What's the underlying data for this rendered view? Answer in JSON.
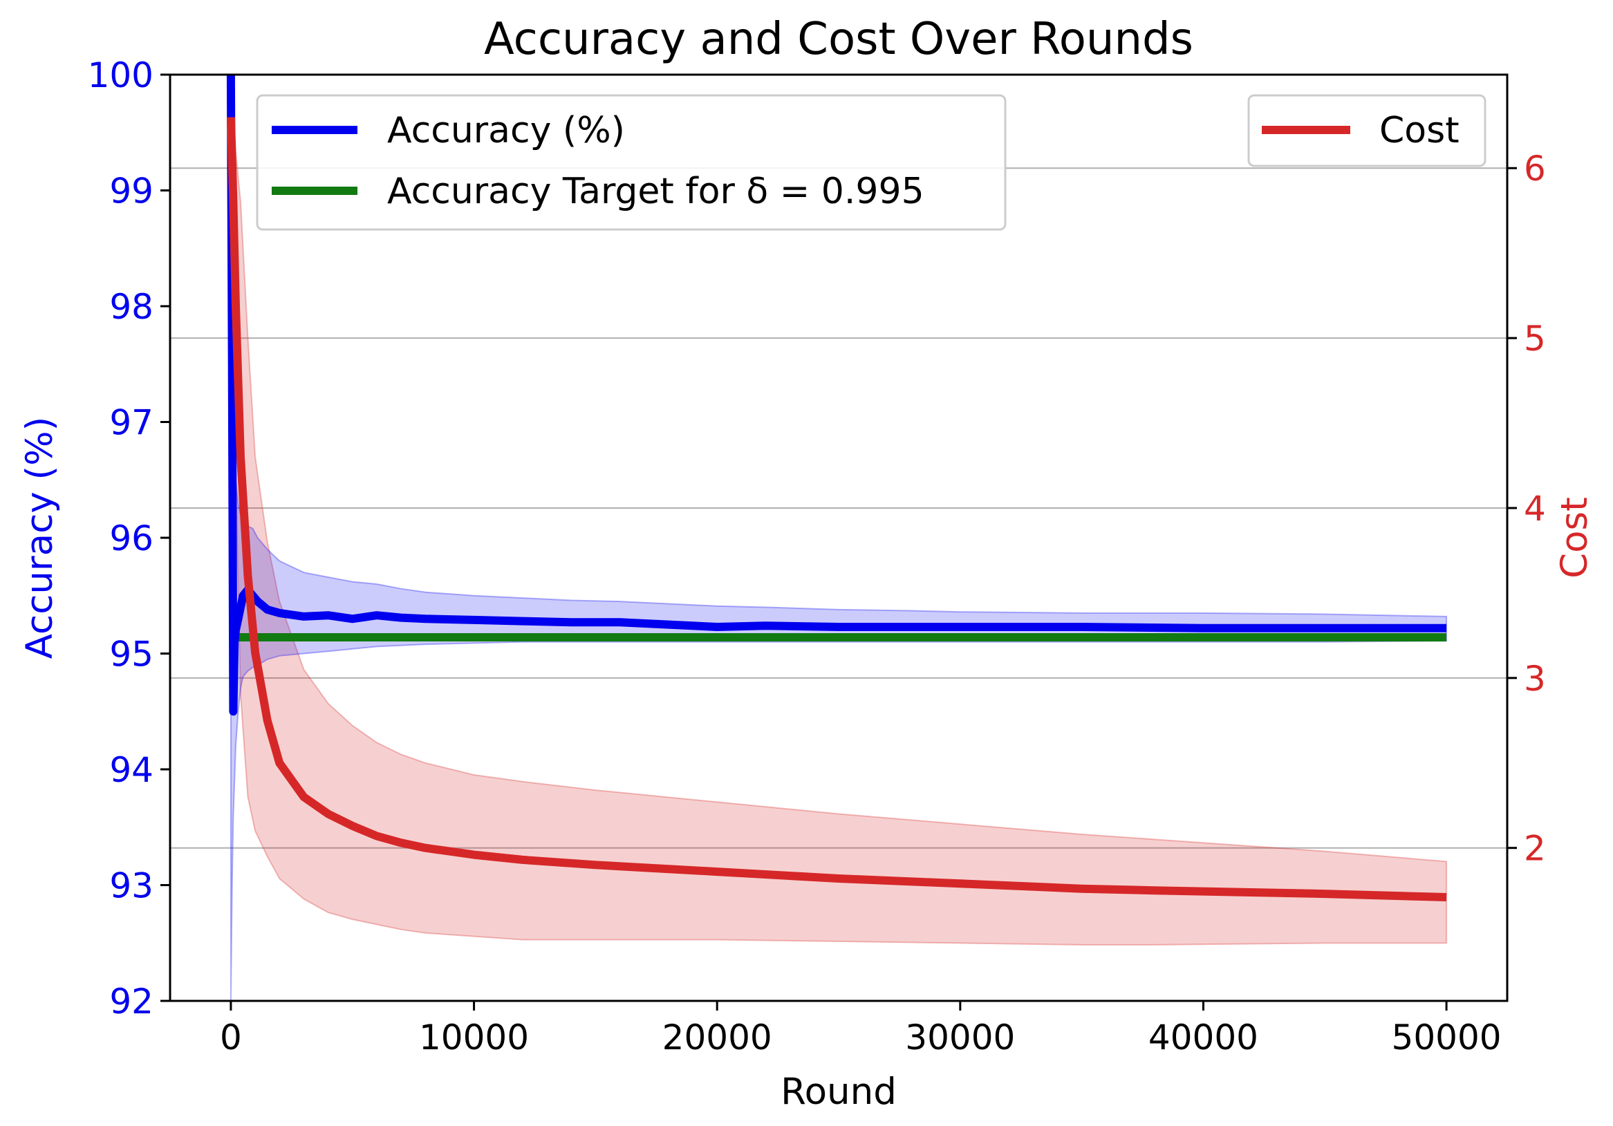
{
  "chart_data": {
    "type": "line",
    "title": "Accuracy and Cost Over Rounds",
    "xlabel": "Round",
    "ylabel_left": "Accuracy (%)",
    "ylabel_right": "Cost",
    "xlim": [
      -2500,
      52500
    ],
    "ylim_left": [
      92,
      100
    ],
    "ylim_right": [
      1.1,
      6.55
    ],
    "x_ticks": [
      0,
      10000,
      20000,
      30000,
      40000,
      50000
    ],
    "x_tick_labels": [
      "0",
      "10000",
      "20000",
      "30000",
      "40000",
      "50000"
    ],
    "y_left_ticks": [
      92,
      93,
      94,
      95,
      96,
      97,
      98,
      99,
      100
    ],
    "y_left_tick_labels": [
      "92",
      "93",
      "94",
      "95",
      "96",
      "97",
      "98",
      "99",
      "100"
    ],
    "y_right_ticks": [
      2,
      3,
      4,
      5,
      6
    ],
    "y_right_tick_labels": [
      "2",
      "3",
      "4",
      "5",
      "6"
    ],
    "grid": "horizontal lines at right-axis ticks",
    "colors": {
      "accuracy": "#0000ee",
      "target": "#117a11",
      "cost": "#d62728"
    },
    "legends": [
      {
        "placement": "upper-left",
        "entries": [
          "Accuracy (%)",
          "Accuracy Target for δ = 0.995"
        ]
      },
      {
        "placement": "upper-right",
        "entries": [
          "Cost"
        ]
      }
    ],
    "series": [
      {
        "name": "Accuracy (%)",
        "axis": "left",
        "x": [
          0,
          50,
          100,
          150,
          200,
          300,
          400,
          500,
          700,
          900,
          1100,
          1500,
          2000,
          3000,
          4000,
          5000,
          6000,
          7000,
          8000,
          10000,
          12000,
          14000,
          16000,
          18000,
          20000,
          22000,
          25000,
          28000,
          30000,
          35000,
          40000,
          45000,
          50000
        ],
        "y": [
          100,
          97.5,
          94.5,
          95.1,
          95.2,
          95.3,
          95.4,
          95.5,
          95.55,
          95.5,
          95.45,
          95.38,
          95.35,
          95.32,
          95.33,
          95.3,
          95.33,
          95.31,
          95.3,
          95.29,
          95.28,
          95.27,
          95.27,
          95.25,
          95.23,
          95.24,
          95.23,
          95.23,
          95.23,
          95.23,
          95.22,
          95.22,
          95.22
        ],
        "band_upper": [
          100,
          99.0,
          97.3,
          96.8,
          96.5,
          96.3,
          96.2,
          96.15,
          96.1,
          96.08,
          96.0,
          95.9,
          95.8,
          95.7,
          95.66,
          95.62,
          95.6,
          95.56,
          95.53,
          95.5,
          95.48,
          95.46,
          95.45,
          95.43,
          95.41,
          95.4,
          95.38,
          95.37,
          95.36,
          95.35,
          95.35,
          95.34,
          95.32
        ],
        "band_lower": [
          92.0,
          93.0,
          93.6,
          93.9,
          94.2,
          94.5,
          94.7,
          94.8,
          94.85,
          94.88,
          94.9,
          94.95,
          94.98,
          95.0,
          95.02,
          95.04,
          95.06,
          95.07,
          95.08,
          95.09,
          95.1,
          95.1,
          95.1,
          95.1,
          95.1,
          95.1,
          95.1,
          95.1,
          95.1,
          95.1,
          95.1,
          95.1,
          95.11
        ]
      },
      {
        "name": "Accuracy Target for δ = 0.995",
        "axis": "left",
        "x": [
          0,
          50000
        ],
        "y": [
          95.14,
          95.14
        ]
      },
      {
        "name": "Cost",
        "axis": "right",
        "x": [
          0,
          100,
          200,
          400,
          700,
          1000,
          1500,
          2000,
          3000,
          4000,
          5000,
          6000,
          7000,
          8000,
          10000,
          12000,
          15000,
          20000,
          25000,
          30000,
          35000,
          38000,
          45000,
          50000
        ],
        "y": [
          6.3,
          5.8,
          5.2,
          4.3,
          3.6,
          3.15,
          2.75,
          2.5,
          2.3,
          2.2,
          2.13,
          2.07,
          2.03,
          2.0,
          1.96,
          1.93,
          1.9,
          1.86,
          1.82,
          1.79,
          1.76,
          1.75,
          1.73,
          1.71
        ],
        "band_upper": [
          6.4,
          6.3,
          6.1,
          5.8,
          5.0,
          4.3,
          3.8,
          3.45,
          3.05,
          2.85,
          2.72,
          2.62,
          2.55,
          2.5,
          2.43,
          2.39,
          2.34,
          2.27,
          2.2,
          2.14,
          2.08,
          2.05,
          1.98,
          1.92
        ],
        "band_lower": [
          6.2,
          5.2,
          4.2,
          2.9,
          2.3,
          2.1,
          1.95,
          1.82,
          1.7,
          1.62,
          1.58,
          1.55,
          1.52,
          1.5,
          1.48,
          1.46,
          1.46,
          1.46,
          1.45,
          1.44,
          1.43,
          1.43,
          1.44,
          1.44
        ]
      }
    ]
  }
}
